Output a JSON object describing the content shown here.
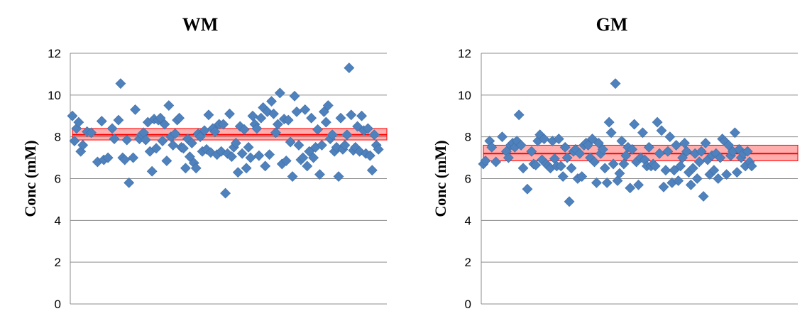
{
  "chart_data": [
    {
      "type": "scatter",
      "title": "WM",
      "xlabel": "",
      "ylabel": "Conc (mM)",
      "ylim": [
        0,
        12
      ],
      "yticks": [
        0,
        2,
        4,
        6,
        8,
        10,
        12
      ],
      "grid": "horizontal",
      "marker": "diamond",
      "marker_color": "#4F81BD",
      "band_color": "#FF0000",
      "mean": 8.1,
      "band": [
        7.85,
        8.4
      ],
      "x_count": 150,
      "points": [
        [
          1,
          9.0
        ],
        [
          2,
          7.8
        ],
        [
          3,
          8.4
        ],
        [
          4,
          8.7
        ],
        [
          5,
          7.3
        ],
        [
          6,
          7.6
        ],
        [
          8,
          8.25
        ],
        [
          10,
          8.2
        ],
        [
          13,
          6.8
        ],
        [
          15,
          8.75
        ],
        [
          16,
          6.9
        ],
        [
          18,
          7.0
        ],
        [
          20,
          8.4
        ],
        [
          21,
          7.9
        ],
        [
          23,
          8.8
        ],
        [
          24,
          10.55
        ],
        [
          25,
          7.0
        ],
        [
          26,
          6.9
        ],
        [
          27,
          7.85
        ],
        [
          28,
          5.8
        ],
        [
          30,
          7.0
        ],
        [
          31,
          9.3
        ],
        [
          33,
          7.9
        ],
        [
          34,
          8.1
        ],
        [
          35,
          8.2
        ],
        [
          36,
          7.85
        ],
        [
          37,
          8.7
        ],
        [
          38,
          7.3
        ],
        [
          39,
          6.35
        ],
        [
          40,
          8.85
        ],
        [
          41,
          7.45
        ],
        [
          42,
          8.8
        ],
        [
          43,
          8.9
        ],
        [
          44,
          7.8
        ],
        [
          45,
          8.6
        ],
        [
          46,
          6.85
        ],
        [
          47,
          9.5
        ],
        [
          48,
          8.0
        ],
        [
          49,
          7.6
        ],
        [
          50,
          8.15
        ],
        [
          51,
          8.8
        ],
        [
          52,
          8.9
        ],
        [
          53,
          7.5
        ],
        [
          54,
          7.45
        ],
        [
          55,
          6.5
        ],
        [
          56,
          7.9
        ],
        [
          57,
          7.05
        ],
        [
          58,
          7.7
        ],
        [
          59,
          6.75
        ],
        [
          60,
          6.5
        ],
        [
          61,
          8.15
        ],
        [
          62,
          8.0
        ],
        [
          63,
          7.3
        ],
        [
          64,
          8.3
        ],
        [
          65,
          7.4
        ],
        [
          66,
          9.05
        ],
        [
          67,
          7.25
        ],
        [
          68,
          8.4
        ],
        [
          69,
          8.25
        ],
        [
          70,
          7.15
        ],
        [
          71,
          8.6
        ],
        [
          72,
          7.3
        ],
        [
          73,
          8.6
        ],
        [
          74,
          5.3
        ],
        [
          75,
          7.2
        ],
        [
          76,
          9.1
        ],
        [
          77,
          7.05
        ],
        [
          78,
          7.5
        ],
        [
          79,
          7.7
        ],
        [
          80,
          6.3
        ],
        [
          81,
          8.5
        ],
        [
          82,
          7.2
        ],
        [
          83,
          8.35
        ],
        [
          84,
          6.5
        ],
        [
          85,
          7.5
        ],
        [
          86,
          7.0
        ],
        [
          87,
          9.0
        ],
        [
          88,
          8.6
        ],
        [
          89,
          8.4
        ],
        [
          90,
          7.1
        ],
        [
          91,
          8.9
        ],
        [
          92,
          9.4
        ],
        [
          93,
          6.6
        ],
        [
          94,
          9.2
        ],
        [
          95,
          7.15
        ],
        [
          96,
          9.7
        ],
        [
          97,
          9.1
        ],
        [
          98,
          8.2
        ],
        [
          99,
          8.6
        ],
        [
          100,
          10.1
        ],
        [
          101,
          6.7
        ],
        [
          102,
          8.85
        ],
        [
          103,
          6.85
        ],
        [
          104,
          8.8
        ],
        [
          105,
          7.75
        ],
        [
          106,
          6.1
        ],
        [
          107,
          9.95
        ],
        [
          108,
          9.2
        ],
        [
          109,
          7.6
        ],
        [
          110,
          6.9
        ],
        [
          111,
          7.0
        ],
        [
          112,
          9.3
        ],
        [
          113,
          6.6
        ],
        [
          114,
          7.3
        ],
        [
          115,
          8.9
        ],
        [
          116,
          7.0
        ],
        [
          117,
          7.5
        ],
        [
          118,
          8.35
        ],
        [
          119,
          6.2
        ],
        [
          120,
          7.6
        ],
        [
          121,
          9.2
        ],
        [
          122,
          8.7
        ],
        [
          123,
          9.5
        ],
        [
          124,
          7.9
        ],
        [
          125,
          8.1
        ],
        [
          126,
          7.3
        ],
        [
          127,
          7.5
        ],
        [
          128,
          6.1
        ],
        [
          129,
          8.9
        ],
        [
          130,
          7.4
        ],
        [
          131,
          7.6
        ],
        [
          132,
          8.1
        ],
        [
          133,
          11.3
        ],
        [
          134,
          9.05
        ],
        [
          135,
          7.35
        ],
        [
          136,
          7.5
        ],
        [
          137,
          8.5
        ],
        [
          138,
          7.3
        ],
        [
          139,
          9.0
        ],
        [
          140,
          8.3
        ],
        [
          141,
          7.2
        ],
        [
          142,
          8.4
        ],
        [
          143,
          7.1
        ],
        [
          144,
          6.4
        ],
        [
          145,
          8.1
        ],
        [
          146,
          7.6
        ],
        [
          147,
          7.4
        ]
      ]
    },
    {
      "type": "scatter",
      "title": "GM",
      "xlabel": "",
      "ylabel": "Conc (mM)",
      "ylim": [
        0,
        12
      ],
      "yticks": [
        0,
        2,
        4,
        6,
        8,
        10,
        12
      ],
      "grid": "horizontal",
      "marker": "diamond",
      "marker_color": "#4F81BD",
      "band_color": "#FF0000",
      "mean": 7.2,
      "band": [
        6.85,
        7.6
      ],
      "x_count": 150,
      "points": [
        [
          1,
          6.7
        ],
        [
          2,
          6.85
        ],
        [
          4,
          7.8
        ],
        [
          5,
          7.5
        ],
        [
          7,
          6.8
        ],
        [
          10,
          8.0
        ],
        [
          12,
          7.3
        ],
        [
          13,
          7.0
        ],
        [
          14,
          7.6
        ],
        [
          15,
          7.7
        ],
        [
          16,
          7.5
        ],
        [
          17,
          7.8
        ],
        [
          18,
          9.05
        ],
        [
          19,
          7.6
        ],
        [
          20,
          6.5
        ],
        [
          22,
          5.5
        ],
        [
          24,
          7.3
        ],
        [
          25,
          6.7
        ],
        [
          26,
          6.65
        ],
        [
          27,
          7.8
        ],
        [
          28,
          8.1
        ],
        [
          29,
          6.9
        ],
        [
          30,
          7.9
        ],
        [
          31,
          6.7
        ],
        [
          32,
          6.6
        ],
        [
          33,
          6.5
        ],
        [
          34,
          7.8
        ],
        [
          35,
          6.95
        ],
        [
          36,
          6.6
        ],
        [
          37,
          7.9
        ],
        [
          38,
          6.6
        ],
        [
          39,
          6.1
        ],
        [
          40,
          7.5
        ],
        [
          41,
          7.0
        ],
        [
          42,
          4.9
        ],
        [
          43,
          6.5
        ],
        [
          44,
          7.3
        ],
        [
          45,
          7.4
        ],
        [
          46,
          6.0
        ],
        [
          47,
          7.2
        ],
        [
          48,
          6.1
        ],
        [
          49,
          7.6
        ],
        [
          50,
          7.7
        ],
        [
          51,
          7.6
        ],
        [
          52,
          7.0
        ],
        [
          53,
          7.9
        ],
        [
          54,
          6.8
        ],
        [
          55,
          5.8
        ],
        [
          56,
          7.7
        ],
        [
          57,
          7.2
        ],
        [
          58,
          7.4
        ],
        [
          59,
          6.5
        ],
        [
          60,
          5.8
        ],
        [
          61,
          8.7
        ],
        [
          62,
          8.2
        ],
        [
          63,
          6.7
        ],
        [
          64,
          10.55
        ],
        [
          65,
          5.9
        ],
        [
          66,
          6.25
        ],
        [
          67,
          7.8
        ],
        [
          68,
          6.7
        ],
        [
          69,
          7.1
        ],
        [
          70,
          7.5
        ],
        [
          71,
          5.55
        ],
        [
          72,
          7.4
        ],
        [
          73,
          8.6
        ],
        [
          74,
          6.8
        ],
        [
          75,
          5.7
        ],
        [
          76,
          7.0
        ],
        [
          77,
          8.2
        ],
        [
          78,
          6.9
        ],
        [
          79,
          6.6
        ],
        [
          80,
          7.5
        ],
        [
          81,
          6.6
        ],
        [
          82,
          6.7
        ],
        [
          83,
          6.6
        ],
        [
          84,
          8.7
        ],
        [
          85,
          7.2
        ],
        [
          86,
          8.3
        ],
        [
          87,
          5.6
        ],
        [
          88,
          6.4
        ],
        [
          89,
          7.3
        ],
        [
          90,
          8.0
        ],
        [
          91,
          5.8
        ],
        [
          92,
          6.4
        ],
        [
          93,
          7.6
        ],
        [
          94,
          5.9
        ],
        [
          95,
          6.6
        ],
        [
          96,
          7.0
        ],
        [
          97,
          7.7
        ],
        [
          98,
          7.3
        ],
        [
          99,
          6.3
        ],
        [
          100,
          5.7
        ],
        [
          101,
          6.5
        ],
        [
          102,
          7.2
        ],
        [
          103,
          6.0
        ],
        [
          104,
          6.8
        ],
        [
          105,
          7.3
        ],
        [
          106,
          5.15
        ],
        [
          107,
          7.7
        ],
        [
          108,
          6.9
        ],
        [
          109,
          6.2
        ],
        [
          110,
          7.1
        ],
        [
          111,
          6.4
        ],
        [
          112,
          7.2
        ],
        [
          113,
          6.0
        ],
        [
          114,
          7.0
        ],
        [
          115,
          7.9
        ],
        [
          116,
          7.8
        ],
        [
          117,
          6.2
        ],
        [
          118,
          7.6
        ],
        [
          119,
          7.1
        ],
        [
          120,
          7.3
        ],
        [
          121,
          8.2
        ],
        [
          122,
          6.3
        ],
        [
          123,
          7.4
        ],
        [
          124,
          7.0
        ],
        [
          125,
          7.2
        ],
        [
          126,
          6.6
        ],
        [
          127,
          7.3
        ],
        [
          128,
          6.8
        ],
        [
          129,
          6.6
        ]
      ]
    }
  ]
}
